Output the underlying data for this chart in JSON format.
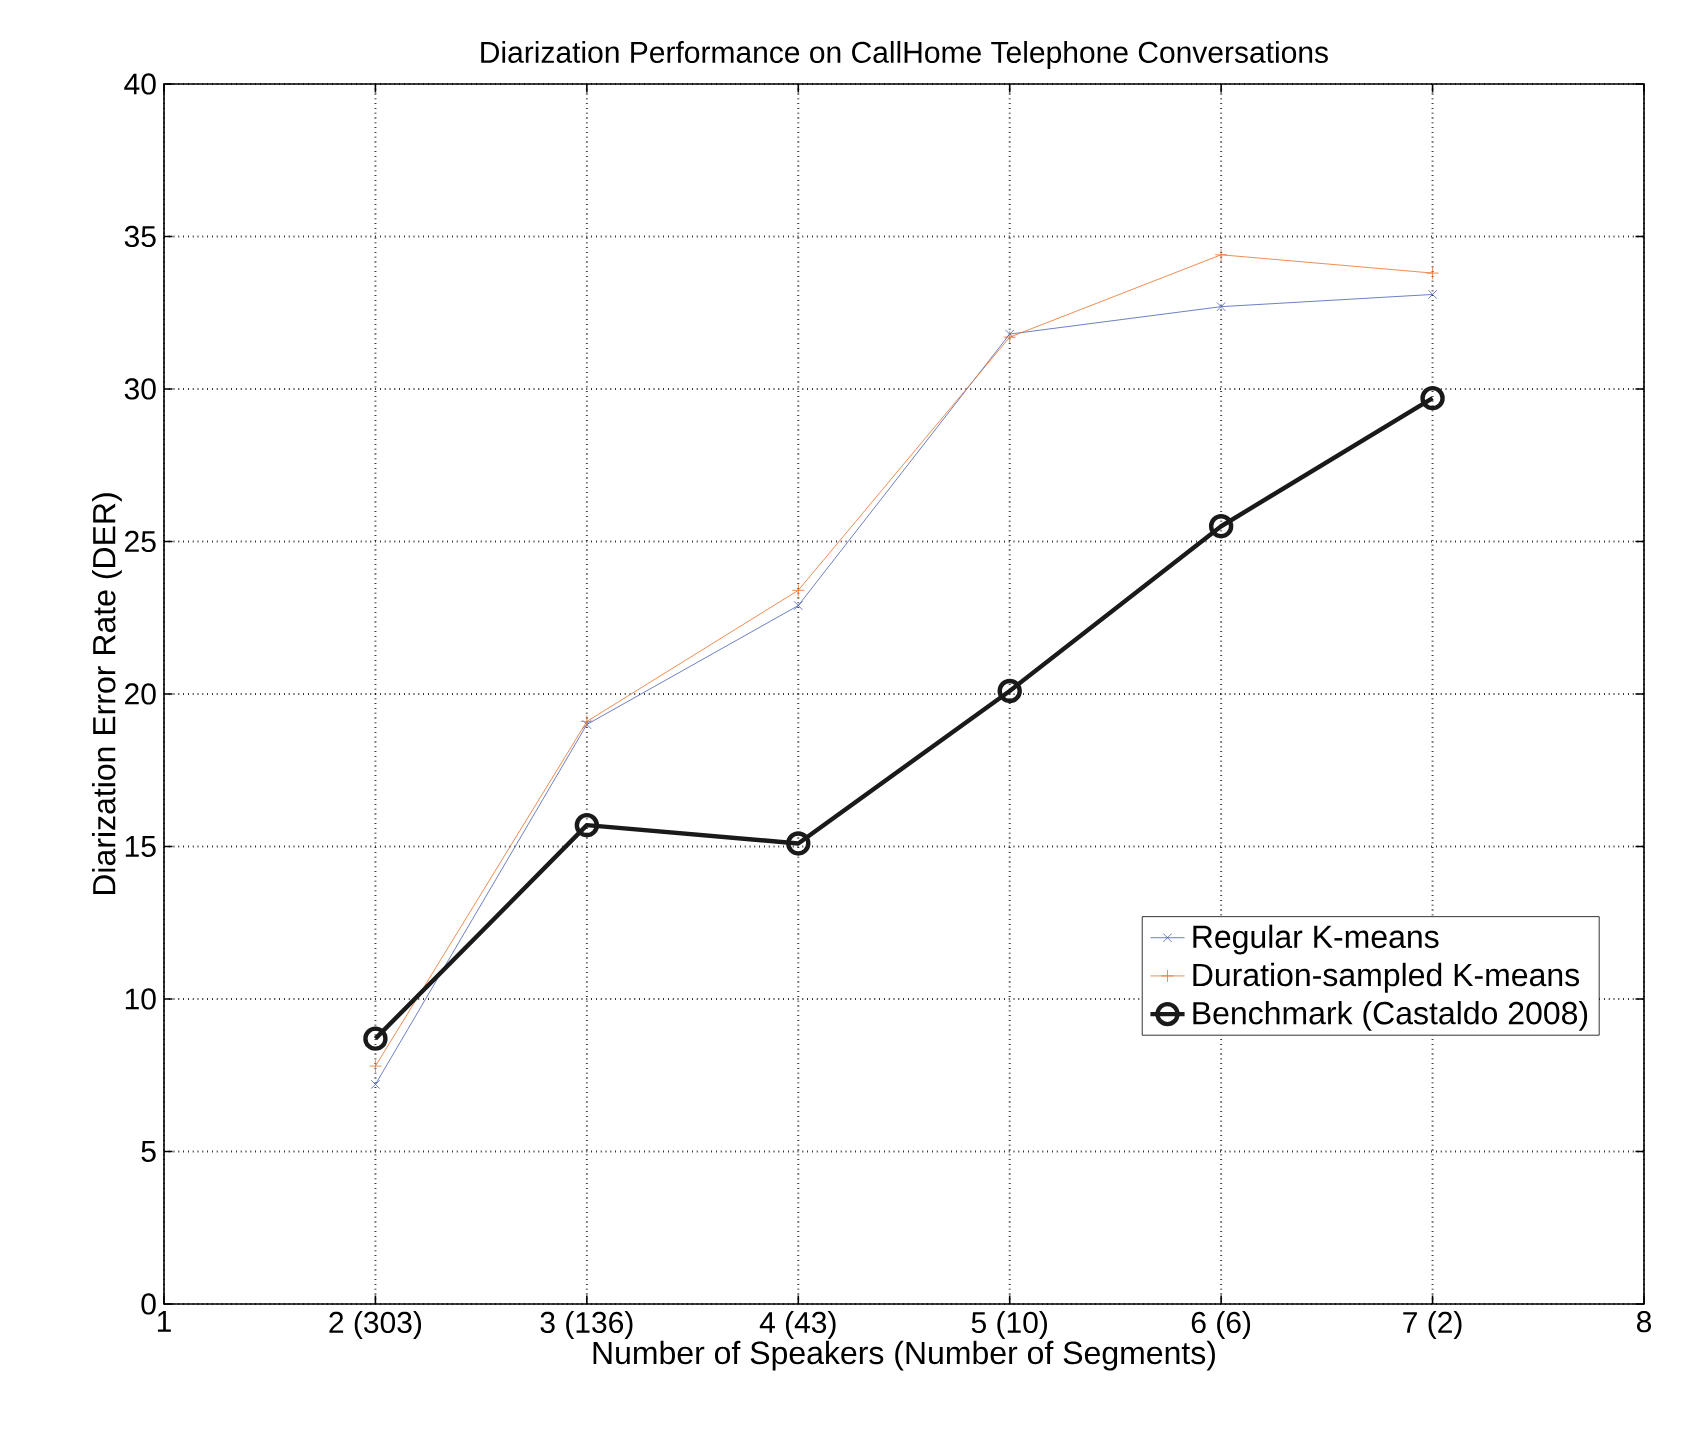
{
  "chart_data": {
    "type": "line",
    "title": "Diarization Performance on CallHome Telephone Conversations",
    "xlabel": "Number of Speakers (Number of Segments)",
    "ylabel": "Diarization Error Rate (DER)",
    "x": [
      2,
      3,
      4,
      5,
      6,
      7
    ],
    "series": [
      {
        "name": "Regular K-means",
        "color": "#4a5fb5",
        "marker": "cross",
        "values": [
          7.2,
          19.0,
          22.9,
          31.8,
          32.7,
          33.1
        ]
      },
      {
        "name": "Duration-sampled K-means",
        "color": "#e8702a",
        "marker": "plus",
        "values": [
          7.8,
          19.1,
          23.4,
          31.7,
          34.4,
          33.8
        ]
      },
      {
        "name": "Benchmark (Castaldo 2008)",
        "color": "#1a1a1a",
        "marker": "circle",
        "values": [
          8.7,
          15.7,
          15.1,
          20.1,
          25.5,
          29.7
        ]
      }
    ],
    "xlim": [
      1,
      8
    ],
    "xticks": [
      1,
      {
        "value": 2,
        "label": "2 (303)"
      },
      {
        "value": 3,
        "label": "3 (136)"
      },
      {
        "value": 4,
        "label": "4 (43)"
      },
      {
        "value": 5,
        "label": "5 (10)"
      },
      {
        "value": 6,
        "label": "6 (6)"
      },
      {
        "value": 7,
        "label": "7 (2)"
      },
      8
    ],
    "ylim": [
      0,
      40
    ],
    "yticks": [
      0,
      5,
      10,
      15,
      20,
      25,
      30,
      35,
      40
    ],
    "grid": true,
    "legend": "bottom right",
    "line_style": "solid"
  }
}
